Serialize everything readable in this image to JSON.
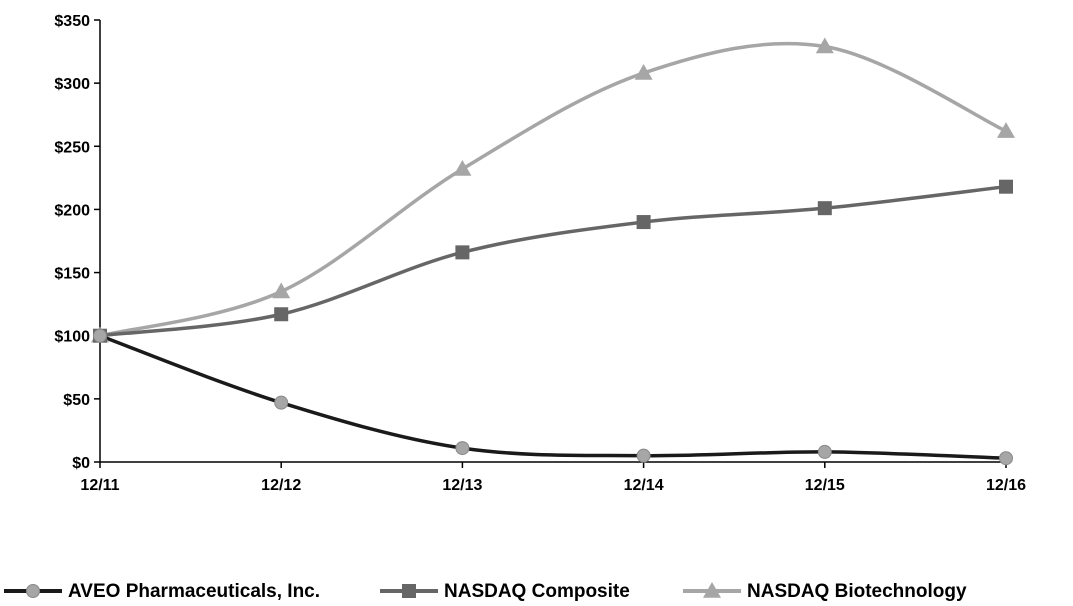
{
  "chart_data": {
    "type": "line",
    "categories": [
      "12/11",
      "12/12",
      "12/13",
      "12/14",
      "12/15",
      "12/16"
    ],
    "series": [
      {
        "name": "AVEO Pharmaceuticals, Inc.",
        "values": [
          100,
          47,
          11,
          5,
          8,
          3
        ],
        "color": "#1a1a1a",
        "marker": "circle",
        "marker_color": "#a6a6a6"
      },
      {
        "name": "NASDAQ Composite",
        "values": [
          100,
          117,
          166,
          190,
          201,
          218
        ],
        "color": "#666666",
        "marker": "square",
        "marker_color": "#666666"
      },
      {
        "name": "NASDAQ Biotechnology",
        "values": [
          100,
          135,
          232,
          308,
          329,
          262
        ],
        "color": "#a6a6a6",
        "marker": "triangle",
        "marker_color": "#a6a6a6"
      }
    ],
    "yticks": [
      "$0",
      "$50",
      "$100",
      "$150",
      "$200",
      "$250",
      "$300",
      "$350"
    ],
    "ylim": [
      0,
      350
    ],
    "grid": false,
    "legend_position": "bottom"
  }
}
